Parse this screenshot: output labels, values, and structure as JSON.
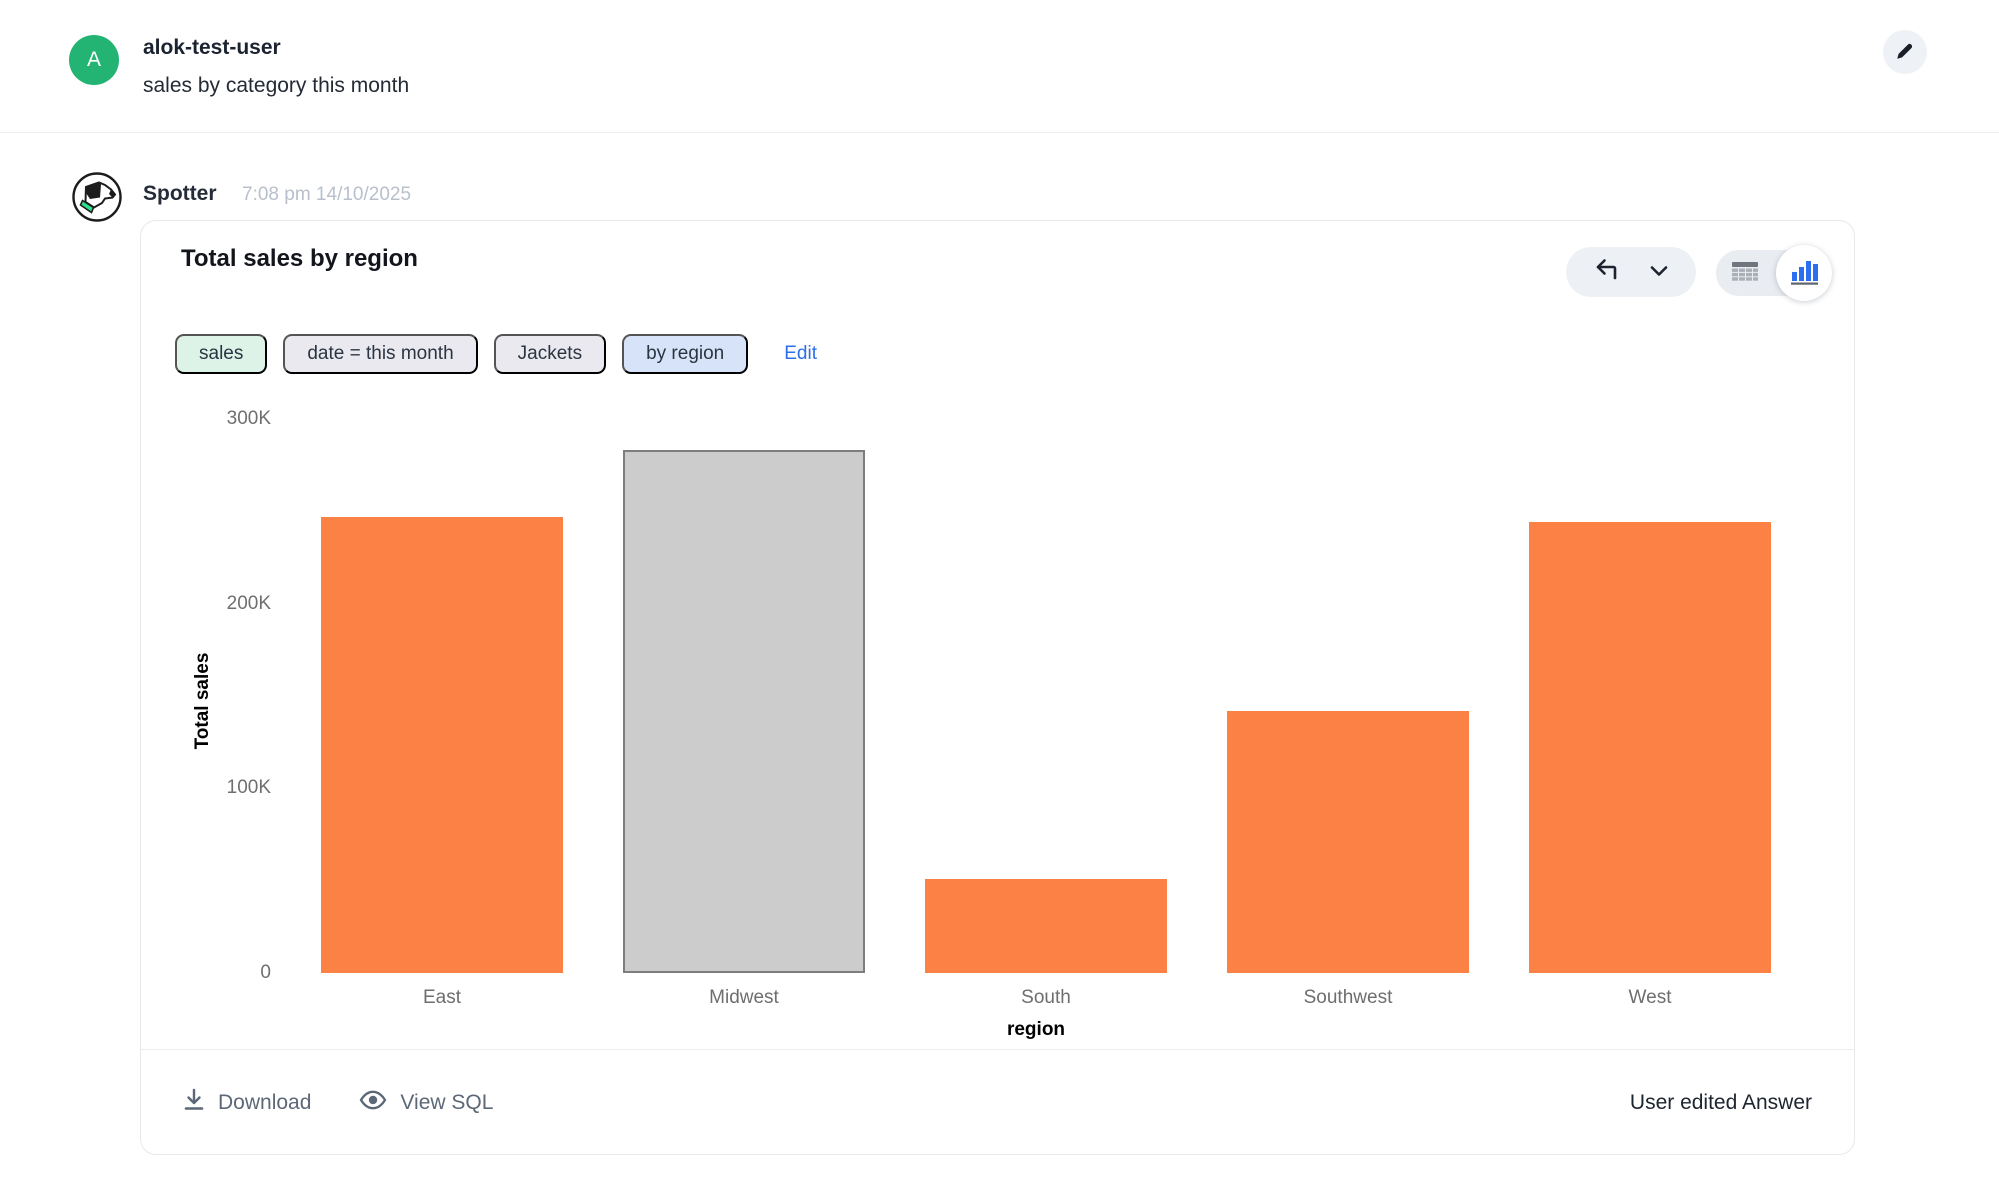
{
  "header": {
    "avatar_letter": "A",
    "username": "alok-test-user",
    "query": "sales by category this month"
  },
  "message": {
    "sender": "Spotter",
    "timestamp": "7:08 pm 14/10/2025"
  },
  "answer_card": {
    "title": "Total sales by region",
    "chips": [
      {
        "label": "sales",
        "type": "green"
      },
      {
        "label": "date = this month",
        "type": "gray"
      },
      {
        "label": "Jackets",
        "type": "gray"
      },
      {
        "label": "by region",
        "type": "blue"
      }
    ],
    "edit_label": "Edit",
    "footer": {
      "download_label": "Download",
      "view_sql_label": "View SQL",
      "status_label": "User edited Answer"
    }
  },
  "chart_data": {
    "type": "bar",
    "title": "Total sales by region",
    "categories": [
      "East",
      "Midwest",
      "South",
      "Southwest",
      "West"
    ],
    "values": [
      247000,
      283000,
      51000,
      142000,
      244000
    ],
    "xlabel": "region",
    "ylabel": "Total sales",
    "ylim": [
      0,
      300000
    ],
    "yticks": [
      {
        "label": "300K",
        "frac_from_top": 0
      },
      {
        "label": "200K",
        "frac_from_top": 0.3333
      },
      {
        "label": "100K",
        "frac_from_top": 0.6667
      },
      {
        "label": "0",
        "frac_from_top": 1
      }
    ],
    "grid": false,
    "legend": "none",
    "bar_color": "#fc8145",
    "highlighted_category": "Midwest",
    "highlight_fill": "#cccccc",
    "highlight_border": "#7d7d7d"
  },
  "colors": {
    "accent_blue": "#2c6fe8",
    "avatar_green": "#23b373",
    "bar_orange": "#fc8145",
    "timestamp_gray": "#b8c0cc"
  }
}
